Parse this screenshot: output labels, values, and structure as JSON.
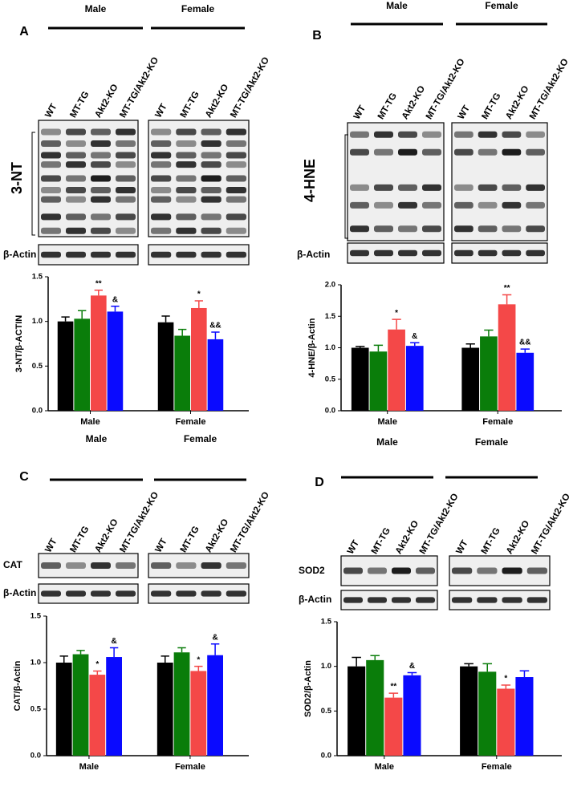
{
  "blots": [
    {
      "panel": "A",
      "groups": [
        "Male",
        "Female"
      ],
      "lanes": [
        "WT",
        "MT-TG",
        "Akt2-KO",
        "MT-TG/Akt2-KO"
      ],
      "target": "3-NT",
      "loading": "β-Actin"
    },
    {
      "panel": "B",
      "groups": [
        "Male",
        "Female"
      ],
      "lanes": [
        "WT",
        "MT-TG",
        "Akt2-KO",
        "MT-TG/Akt2-KO"
      ],
      "target": "4-HNE",
      "loading": "β-Actin"
    },
    {
      "panel": "C",
      "groups": [
        "Male",
        "Female"
      ],
      "lanes": [
        "WT",
        "MT-TG",
        "Akt2-KO",
        "MT-TG/Akt2-KO"
      ],
      "target": "CAT",
      "loading": "β-Actin"
    },
    {
      "panel": "D",
      "groups": [
        "Male",
        "Female"
      ],
      "lanes": [
        "WT",
        "MT-TG",
        "Akt2-KO",
        "MT-TG/Akt2-KO"
      ],
      "target": "SOD2",
      "loading": "β-Actin"
    }
  ],
  "chart_data": [
    {
      "type": "bar",
      "ylabel": "3-NT/β-ACTIN",
      "categories": [
        "Male",
        "Female"
      ],
      "ylim": [
        0,
        1.5
      ],
      "yticks": [
        {
          "value": 0,
          "label": "0.0"
        },
        {
          "value": 0.5,
          "label": "0.5"
        },
        {
          "value": 1,
          "label": "1.0"
        },
        {
          "value": 1.5,
          "label": "1.5"
        }
      ],
      "series": [
        {
          "color": "#000000",
          "values": [
            1.0,
            0.99
          ],
          "errors": [
            0.05,
            0.07
          ],
          "significance": [
            null,
            null
          ]
        },
        {
          "color": "#0a7d0a",
          "values": [
            1.03,
            0.84
          ],
          "errors": [
            0.09,
            0.07
          ],
          "significance": [
            null,
            null
          ]
        },
        {
          "color": "#f44848",
          "values": [
            1.29,
            1.15
          ],
          "errors": [
            0.06,
            0.08
          ],
          "significance": [
            "**",
            "*"
          ]
        },
        {
          "color": "#0a0aff",
          "values": [
            1.11,
            0.8
          ],
          "errors": [
            0.06,
            0.08
          ],
          "significance": [
            "&",
            "&&"
          ]
        }
      ]
    },
    {
      "type": "bar",
      "ylabel": "4-HNE/β-Actin",
      "categories": [
        "Male",
        "Female"
      ],
      "ylim": [
        0,
        2
      ],
      "yticks": [
        {
          "value": 0,
          "label": "0.0"
        },
        {
          "value": 0.5,
          "label": "0.5"
        },
        {
          "value": 1,
          "label": "1.0"
        },
        {
          "value": 1.5,
          "label": "1.5"
        },
        {
          "value": 2,
          "label": "2.0"
        }
      ],
      "series": [
        {
          "color": "#000000",
          "values": [
            1.0,
            1.0
          ],
          "errors": [
            0.02,
            0.06
          ],
          "significance": [
            null,
            null
          ]
        },
        {
          "color": "#0a7d0a",
          "values": [
            0.94,
            1.18
          ],
          "errors": [
            0.1,
            0.1
          ],
          "significance": [
            null,
            null
          ]
        },
        {
          "color": "#f44848",
          "values": [
            1.29,
            1.69
          ],
          "errors": [
            0.16,
            0.15
          ],
          "significance": [
            "*",
            "**"
          ]
        },
        {
          "color": "#0a0aff",
          "values": [
            1.03,
            0.92
          ],
          "errors": [
            0.05,
            0.06
          ],
          "significance": [
            "&",
            "&&"
          ]
        }
      ]
    },
    {
      "type": "bar",
      "ylabel": "CAT/β-Actin",
      "categories": [
        "Male",
        "Female"
      ],
      "ylim": [
        0,
        1.5
      ],
      "yticks": [
        {
          "value": 0,
          "label": "0.0"
        },
        {
          "value": 0.5,
          "label": "0.5"
        },
        {
          "value": 1,
          "label": "1.0"
        },
        {
          "value": 1.5,
          "label": "1.5"
        }
      ],
      "series": [
        {
          "color": "#000000",
          "values": [
            1.0,
            1.0
          ],
          "errors": [
            0.07,
            0.07
          ],
          "significance": [
            null,
            null
          ]
        },
        {
          "color": "#0a7d0a",
          "values": [
            1.09,
            1.11
          ],
          "errors": [
            0.04,
            0.05
          ],
          "significance": [
            null,
            null
          ]
        },
        {
          "color": "#f44848",
          "values": [
            0.87,
            0.91
          ],
          "errors": [
            0.04,
            0.05
          ],
          "significance": [
            "*",
            "*"
          ]
        },
        {
          "color": "#0a0aff",
          "values": [
            1.06,
            1.08
          ],
          "errors": [
            0.1,
            0.12
          ],
          "significance": [
            "&",
            "&"
          ]
        }
      ]
    },
    {
      "type": "bar",
      "ylabel": "SOD2/β-Actin",
      "categories": [
        "Male",
        "Female"
      ],
      "ylim": [
        0,
        1.5
      ],
      "yticks": [
        {
          "value": 0,
          "label": "0.0"
        },
        {
          "value": 0.5,
          "label": "0.5"
        },
        {
          "value": 1,
          "label": "1.0"
        },
        {
          "value": 1.5,
          "label": "1.5"
        }
      ],
      "series": [
        {
          "color": "#000000",
          "values": [
            1.0,
            1.0
          ],
          "errors": [
            0.1,
            0.03
          ],
          "significance": [
            null,
            null
          ]
        },
        {
          "color": "#0a7d0a",
          "values": [
            1.07,
            0.94
          ],
          "errors": [
            0.05,
            0.09
          ],
          "significance": [
            null,
            null
          ]
        },
        {
          "color": "#f44848",
          "values": [
            0.65,
            0.75
          ],
          "errors": [
            0.05,
            0.04
          ],
          "significance": [
            "**",
            "*"
          ]
        },
        {
          "color": "#0a0aff",
          "values": [
            0.9,
            0.88
          ],
          "errors": [
            0.03,
            0.07
          ],
          "significance": [
            "&",
            null
          ]
        }
      ]
    }
  ]
}
